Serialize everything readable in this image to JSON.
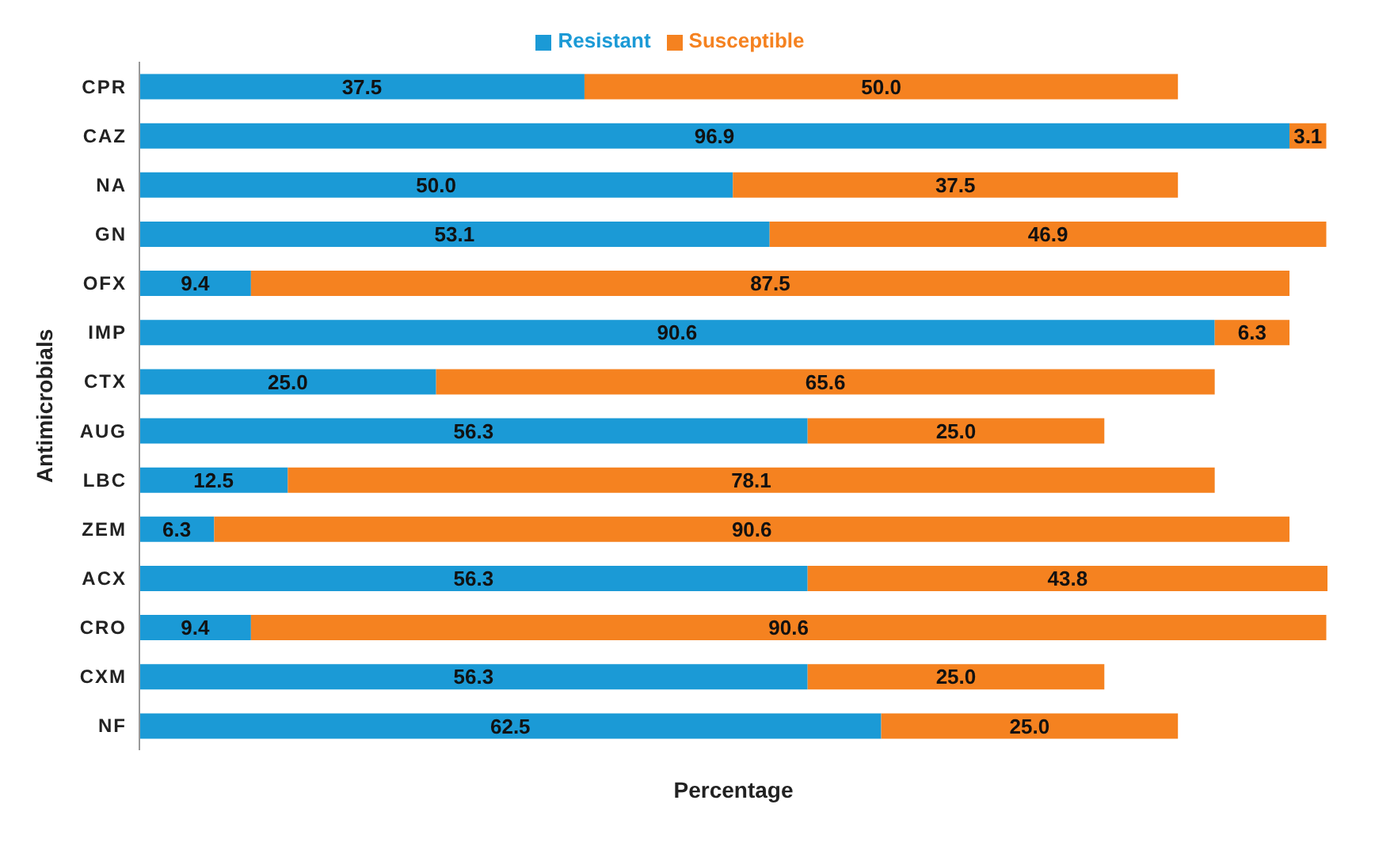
{
  "chart_data": {
    "type": "bar",
    "orientation": "horizontal",
    "stacked": true,
    "xlabel": "Percentage",
    "ylabel": "Antimicrobials",
    "legend": "top",
    "tick_labels": "y",
    "grid": false,
    "categories": [
      "CPR",
      "CAZ",
      "NA",
      "GN",
      "OFX",
      "IMP",
      "CTX",
      "AUG",
      "LBC",
      "ZEM",
      "ACX",
      "CRO",
      "CXM",
      "NF"
    ],
    "series": [
      {
        "name": "Resistant",
        "color": "#1b9ad6",
        "values": [
          37.5,
          96.9,
          50.0,
          53.1,
          9.4,
          90.6,
          25.0,
          56.3,
          12.5,
          6.3,
          56.3,
          9.4,
          56.3,
          62.5
        ],
        "value_labels": [
          "37.5",
          "96.9",
          "50.0",
          "53.1",
          "9.4",
          "90.6",
          "25.0",
          "56.3",
          "12.5",
          "6.3",
          "56.3",
          "9.4",
          "56.3",
          "62.5"
        ]
      },
      {
        "name": "Susceptible",
        "color": "#f58220",
        "values": [
          50.0,
          3.1,
          37.5,
          46.9,
          87.5,
          6.3,
          65.6,
          25.0,
          78.1,
          90.6,
          43.8,
          90.6,
          25.0,
          25.0
        ],
        "value_labels": [
          "50.0",
          "3.1",
          "37.5",
          "46.9",
          "87.5",
          "6.3",
          "65.6",
          "25.0",
          "78.1",
          "90.6",
          "43.8",
          "90.6",
          "25.0",
          "25.0"
        ]
      }
    ]
  }
}
